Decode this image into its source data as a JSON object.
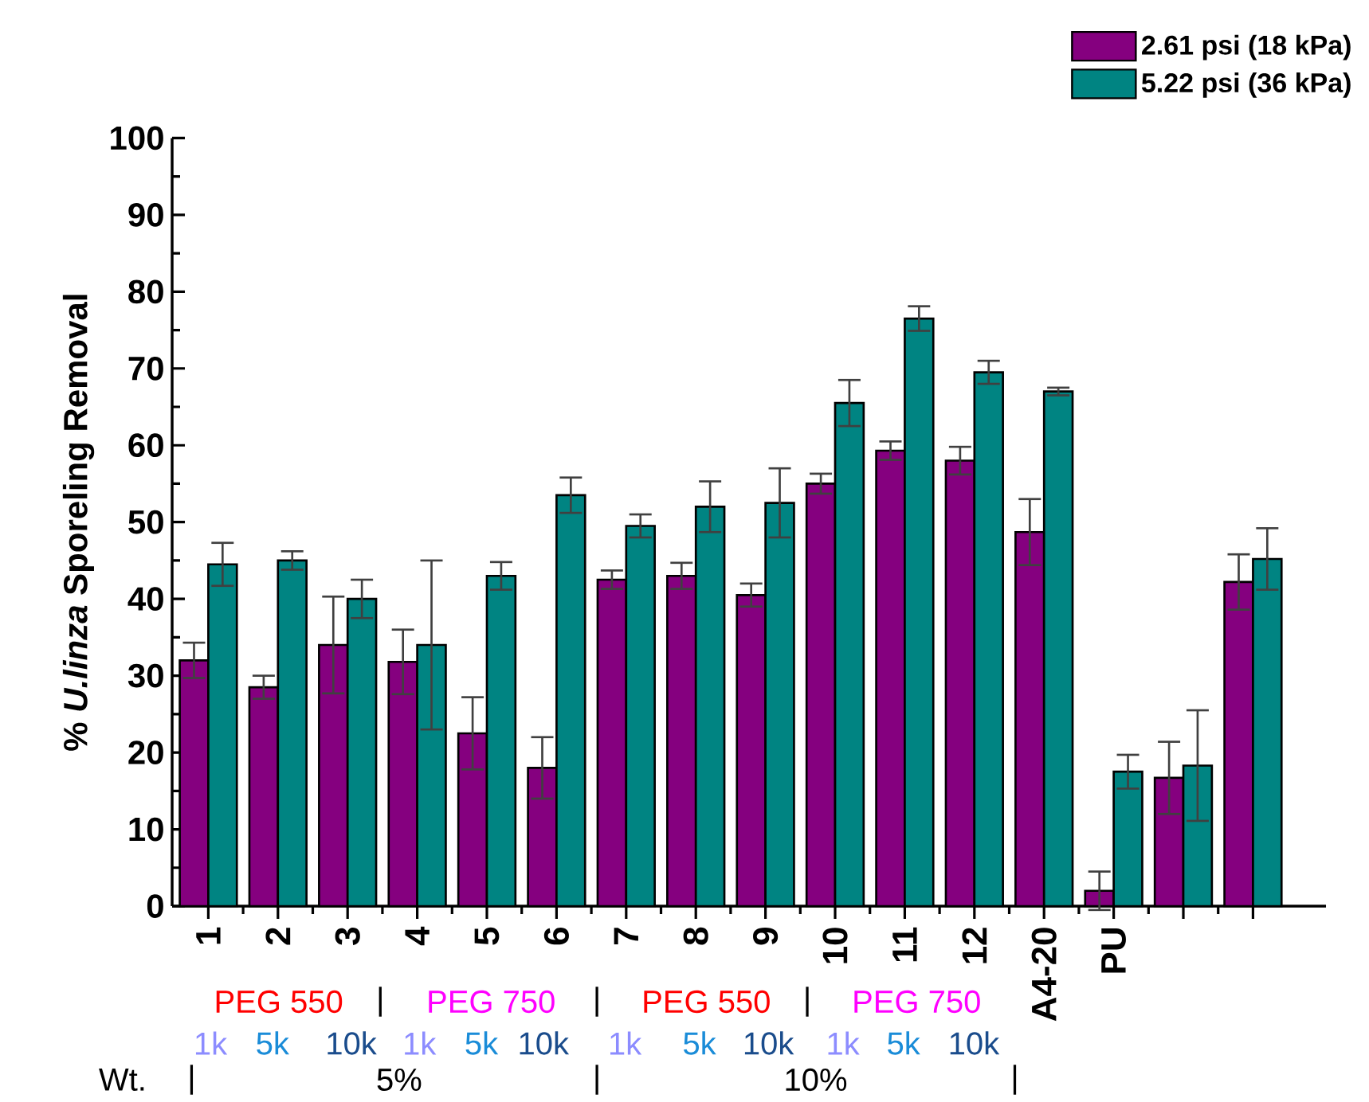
{
  "chart_data": {
    "type": "bar",
    "ylabel": "% *U.linza* Sporeling Removal",
    "categories": [
      "1",
      "2",
      "3",
      "4",
      "5",
      "6",
      "7",
      "8",
      "9",
      "10",
      "11",
      "12",
      "A4-20",
      "PU",
      null,
      null
    ],
    "series": [
      {
        "name": "2.61 psi (18 kPa)",
        "color": "#85007f",
        "values": [
          32,
          28.5,
          34,
          31.8,
          22.5,
          18,
          42.5,
          43,
          40.5,
          55,
          59.3,
          58,
          48.7,
          2,
          16.7,
          42.2
        ],
        "errors": [
          2.3,
          1.5,
          6.3,
          4.2,
          4.7,
          4,
          1.2,
          1.7,
          1.5,
          1.3,
          1.2,
          1.8,
          4.3,
          2.5,
          4.7,
          3.6
        ]
      },
      {
        "name": "5.22 psi (36 kPa)",
        "color": "#008482",
        "values": [
          44.5,
          45,
          40,
          34,
          43,
          53.5,
          49.5,
          52,
          52.5,
          65.5,
          76.5,
          69.5,
          67,
          17.5,
          18.3,
          45.2
        ],
        "errors": [
          2.8,
          1.2,
          2.5,
          11,
          1.8,
          2.3,
          1.5,
          3.3,
          4.5,
          3,
          1.6,
          1.5,
          0.5,
          2.2,
          7.2,
          4
        ]
      }
    ],
    "ylim": [
      0,
      100
    ],
    "yticks": [
      0,
      10,
      20,
      30,
      40,
      50,
      60,
      70,
      80,
      90,
      100
    ],
    "legend": "top right",
    "grid": false,
    "annotations": [
      "PEG 550",
      "|",
      "PEG 750",
      "|",
      "PEG 550",
      "|",
      "PEG 750",
      "1k",
      "5k",
      "10k",
      "1k",
      "5k",
      "10k",
      "1k",
      "5k",
      "10k",
      "1k",
      "5k",
      "10k",
      "Wt.",
      "|",
      "5%",
      "|",
      "10%",
      "|"
    ]
  }
}
